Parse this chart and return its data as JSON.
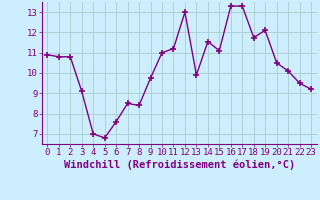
{
  "x": [
    0,
    1,
    2,
    3,
    4,
    5,
    6,
    7,
    8,
    9,
    10,
    11,
    12,
    13,
    14,
    15,
    16,
    17,
    18,
    19,
    20,
    21,
    22,
    23
  ],
  "y": [
    10.9,
    10.8,
    10.8,
    9.1,
    7.0,
    6.8,
    7.6,
    8.5,
    8.4,
    9.75,
    11.0,
    11.2,
    13.0,
    9.9,
    11.55,
    11.1,
    13.3,
    13.3,
    11.75,
    12.1,
    10.5,
    10.1,
    9.5,
    9.2
  ],
  "line_color": "#800080",
  "marker": "+",
  "marker_size": 4,
  "marker_lw": 1.2,
  "bg_color": "#cceeff",
  "grid_color": "#aacccc",
  "xlabel": "Windchill (Refroidissement éolien,°C)",
  "xlabel_color": "#800080",
  "tick_color": "#800080",
  "ylim": [
    6.5,
    13.5
  ],
  "xlim": [
    -0.5,
    23.5
  ],
  "yticks": [
    7,
    8,
    9,
    10,
    11,
    12,
    13
  ],
  "xticks": [
    0,
    1,
    2,
    3,
    4,
    5,
    6,
    7,
    8,
    9,
    10,
    11,
    12,
    13,
    14,
    15,
    16,
    17,
    18,
    19,
    20,
    21,
    22,
    23
  ],
  "xtick_labels": [
    "0",
    "1",
    "2",
    "3",
    "4",
    "5",
    "6",
    "7",
    "8",
    "9",
    "10",
    "11",
    "12",
    "13",
    "14",
    "15",
    "16",
    "17",
    "18",
    "19",
    "20",
    "21",
    "22",
    "23"
  ],
  "font_size": 6.5,
  "xlabel_fontsize": 7.5,
  "line_width": 1.0
}
